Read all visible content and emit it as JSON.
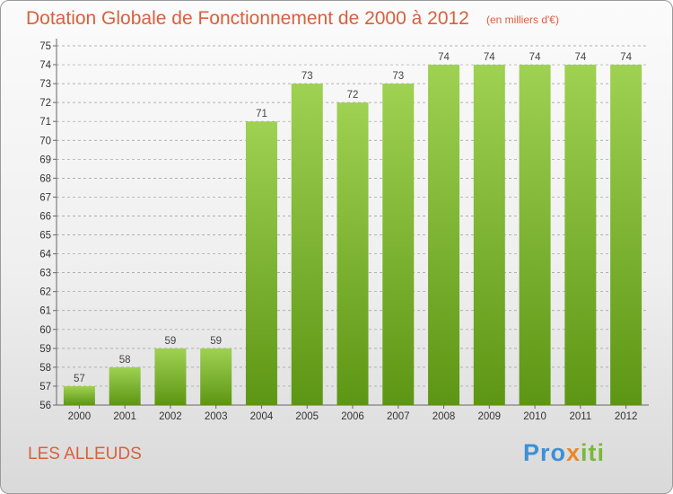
{
  "header": {
    "title": "Dotation Globale de Fonctionnement de 2000 à 2012",
    "unit": "(en milliers d'€)"
  },
  "footer": {
    "commune": "LES ALLEUDS",
    "logo": {
      "part1": "Pro",
      "part2": "x",
      "part3": "iti"
    }
  },
  "colors": {
    "title": "#d9603b",
    "bar_top": "#9fd152",
    "bar_bottom": "#5d9614",
    "grid": "#9a9a9a"
  },
  "chart_data": {
    "type": "bar",
    "title": "Dotation Globale de Fonctionnement de 2000 à 2012",
    "subtitle": "(en milliers d'€)",
    "categories": [
      "2000",
      "2001",
      "2002",
      "2003",
      "2004",
      "2005",
      "2006",
      "2007",
      "2008",
      "2009",
      "2010",
      "2011",
      "2012"
    ],
    "values": [
      57,
      58,
      59,
      59,
      71,
      73,
      72,
      73,
      74,
      74,
      74,
      74,
      74
    ],
    "ylim": [
      56,
      75
    ],
    "ytick_step": 1,
    "grid": true,
    "data_labels": true
  }
}
